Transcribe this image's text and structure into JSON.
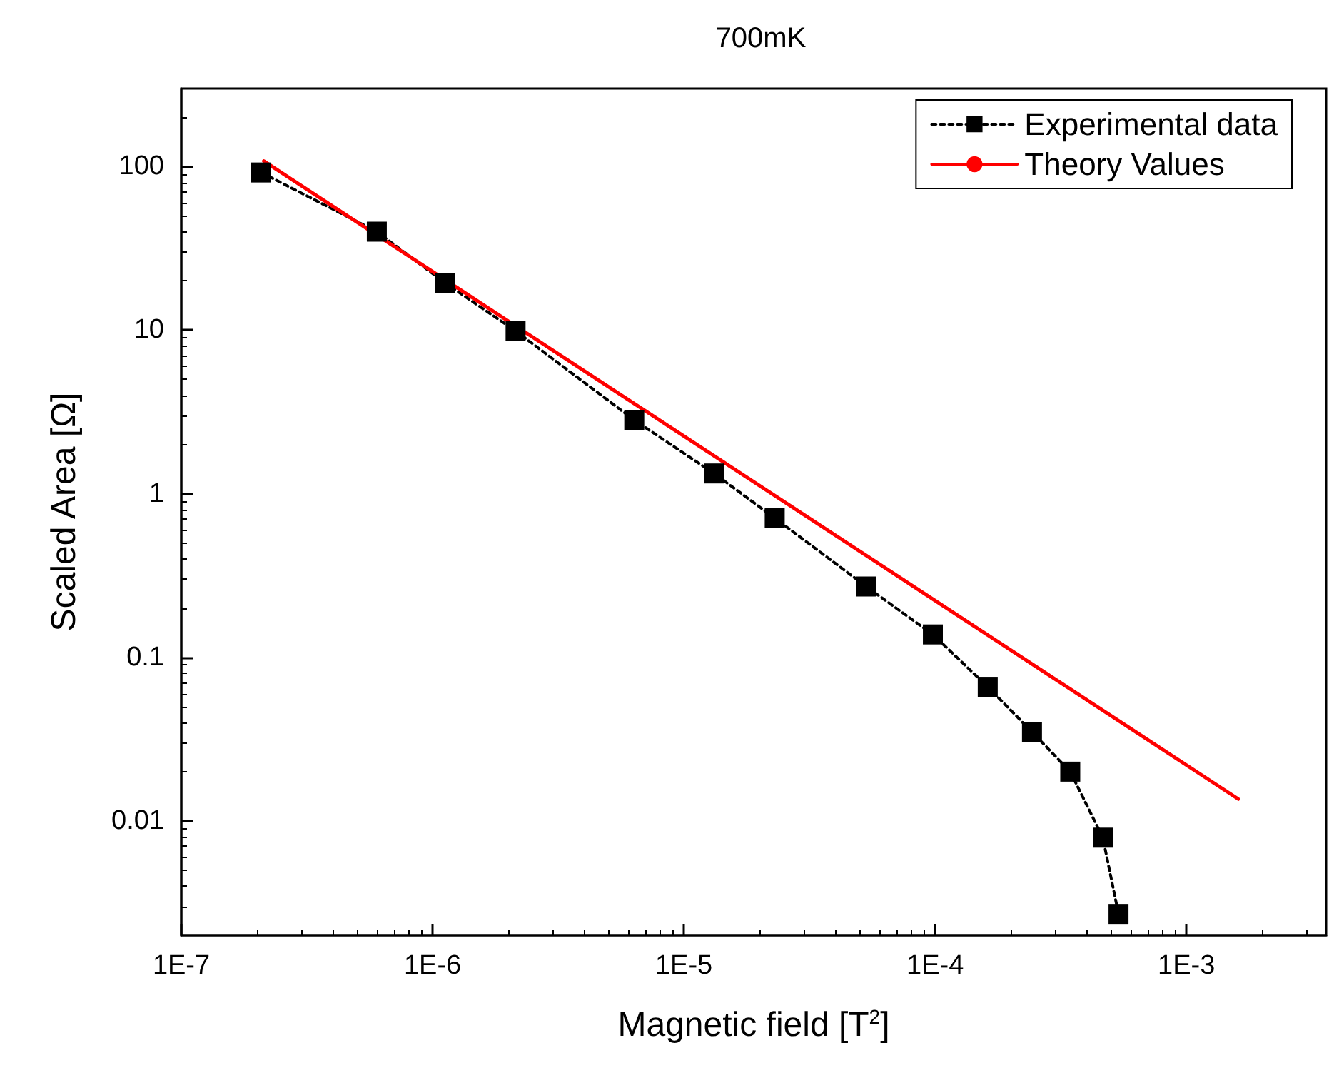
{
  "chart_data": {
    "type": "line",
    "title": "700mK",
    "xlabel": "Magnetic field [T$^{2}$]",
    "ylabel": "Scaled Area [Ω]",
    "log": "xy",
    "xlim": [
      1e-07,
      0.0036
    ],
    "ylim": [
      0.002,
      300
    ],
    "xticks": [
      {
        "value": 1e-07,
        "label": "1E-7"
      },
      {
        "value": 1e-06,
        "label": "1E-6"
      },
      {
        "value": 1e-05,
        "label": "1E-5"
      },
      {
        "value": 0.0001,
        "label": "1E-4"
      },
      {
        "value": 0.001,
        "label": "1E-3"
      }
    ],
    "yticks": [
      0.01,
      0.1,
      1,
      10,
      100
    ],
    "grid": false,
    "legend": "top right",
    "series": [
      {
        "name": "Experimental data",
        "color": "#000000",
        "marker": "square",
        "line_style": "dotted",
        "x": [
          2.08e-07,
          6e-07,
          1.12e-06,
          2.14e-06,
          6.35e-06,
          1.32e-05,
          2.3e-05,
          5.32e-05,
          9.8e-05,
          0.000162,
          0.000243,
          0.000345,
          0.000465,
          0.000537
        ],
        "values": [
          92,
          40,
          19.5,
          9.9,
          2.82,
          1.33,
          0.71,
          0.271,
          0.138,
          0.066,
          0.035,
          0.02,
          0.0079,
          0.0027
        ]
      },
      {
        "name": "Theory Values",
        "color": "#ff0000",
        "marker": "none",
        "line_style": "solid",
        "x": [
          2.13e-07,
          0.00161
        ],
        "values": [
          108,
          0.0136
        ]
      }
    ]
  }
}
